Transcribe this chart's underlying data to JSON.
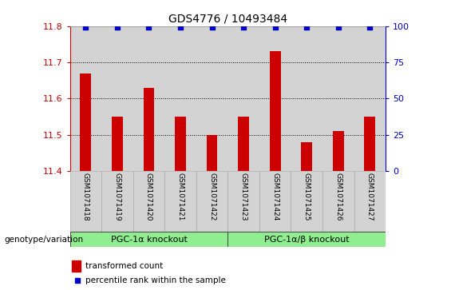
{
  "title": "GDS4776 / 10493484",
  "samples": [
    "GSM1071418",
    "GSM1071419",
    "GSM1071420",
    "GSM1071421",
    "GSM1071422",
    "GSM1071423",
    "GSM1071424",
    "GSM1071425",
    "GSM1071426",
    "GSM1071427"
  ],
  "transformed_counts": [
    11.67,
    11.55,
    11.63,
    11.55,
    11.5,
    11.55,
    11.73,
    11.48,
    11.51,
    11.55
  ],
  "percentile_ranks": [
    99,
    99,
    99,
    99,
    99,
    99,
    99,
    99,
    99,
    99
  ],
  "ylim_left": [
    11.4,
    11.8
  ],
  "ylim_right": [
    0,
    100
  ],
  "yticks_left": [
    11.4,
    11.5,
    11.6,
    11.7,
    11.8
  ],
  "yticks_right": [
    0,
    25,
    50,
    75,
    100
  ],
  "bar_color": "#cc0000",
  "dot_color": "#0000cc",
  "group1_label": "PGC-1α knockout",
  "group2_label": "PGC-1α/β knockout",
  "group1_indices": [
    0,
    1,
    2,
    3,
    4
  ],
  "group2_indices": [
    5,
    6,
    7,
    8,
    9
  ],
  "group_bg_color": "#90ee90",
  "xlabel_left": "genotype/variation",
  "legend_bar_label": "transformed count",
  "legend_dot_label": "percentile rank within the sample",
  "x_bg_color": "#d3d3d3",
  "dotted_grid_color": "#000000",
  "right_axis_color": "#0000cc",
  "left_axis_color": "#cc0000",
  "white_bg": "#ffffff",
  "bar_width": 0.35
}
